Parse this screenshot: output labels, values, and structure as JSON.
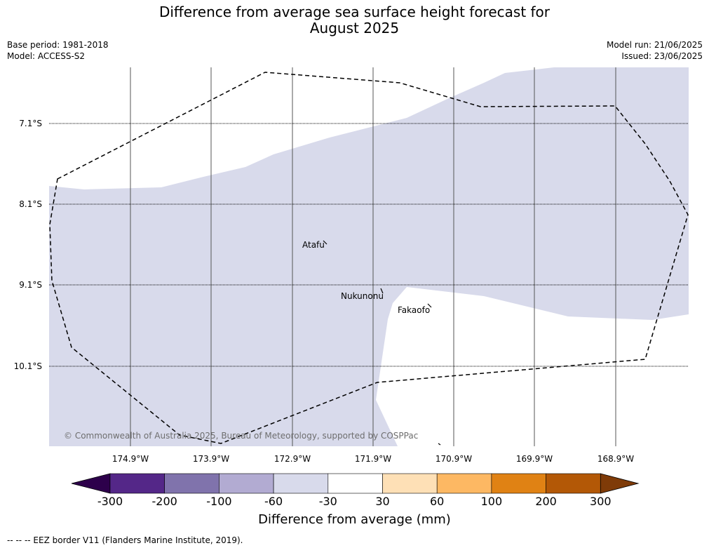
{
  "title_line1": "Difference from average sea surface height forecast for",
  "title_line2": "August 2025",
  "meta": {
    "base_period": "Base period: 1981-2018",
    "model": "Model: ACCESS-S2",
    "model_run": "Model run: 21/06/2025",
    "issued": "Issued: 23/06/2025"
  },
  "lat_labels": [
    "7.1°S",
    "8.1°S",
    "9.1°S",
    "10.1°S"
  ],
  "lon_labels": [
    "174.9°W",
    "173.9°W",
    "172.9°W",
    "171.9°W",
    "170.9°W",
    "169.9°W",
    "168.9°W"
  ],
  "places": {
    "atafu": "Atafu",
    "nukunonu": "Nukunonu",
    "fakaofo": "Fakaofo"
  },
  "copyright": "© Commonwealth of Australia 2025, Bureau of Meteorology, supported by COSPPac",
  "colorbar": {
    "label": "Difference from average (mm)",
    "ticks": [
      "-300",
      "-200",
      "-100",
      "-60",
      "-30",
      "30",
      "60",
      "100",
      "200",
      "300"
    ],
    "colors": [
      "#2d004b",
      "#542788",
      "#8073ac",
      "#b2abd2",
      "#d8daeb",
      "#ffffff",
      "#fee0b6",
      "#fdb863",
      "#e08214",
      "#b35806",
      "#7f3b08"
    ]
  },
  "footnote": "--  --  -- EEZ border V11 (Flanders Marine Institute, 2019)."
}
